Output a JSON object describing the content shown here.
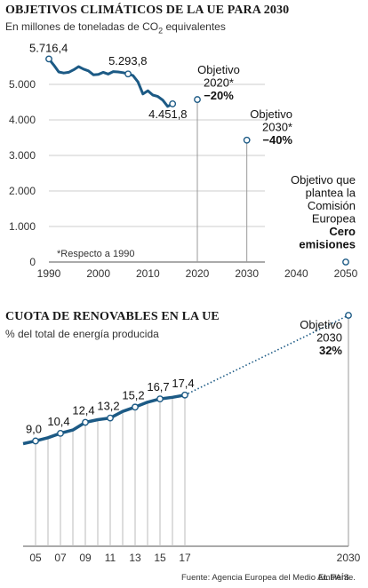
{
  "chart_data": [
    {
      "type": "line",
      "title": "OBJETIVOS CLIMÁTICOS DE LA UE PARA 2030",
      "subtitle_pre": "En millones de toneladas de CO",
      "subtitle_sub": "2",
      "subtitle_post": " equivalentes",
      "ylim": [
        0,
        6000
      ],
      "yticks": [
        "0",
        "1.000",
        "2.000",
        "3.000",
        "4.000",
        "5.000"
      ],
      "xlim": [
        1990,
        2050
      ],
      "xticks": [
        "1990",
        "2000",
        "2010",
        "2020",
        "2030",
        "2040",
        "2050"
      ],
      "grid": true,
      "note": "*Respecto a 1990",
      "series": [
        {
          "x": [
            1990,
            1991,
            1992,
            1993,
            1994,
            1995,
            1996,
            1997,
            1998,
            1999,
            2000,
            2001,
            2002,
            2003,
            2004,
            2005,
            2006,
            2007,
            2008,
            2009,
            2010,
            2011,
            2012,
            2013,
            2014,
            2015
          ],
          "y": [
            5716.4,
            5540,
            5350,
            5320,
            5340,
            5410,
            5500,
            5430,
            5380,
            5270,
            5280,
            5340,
            5290,
            5360,
            5350,
            5330,
            5293.8,
            5250,
            5070,
            4730,
            4820,
            4700,
            4660,
            4560,
            4380,
            4451.8
          ]
        }
      ],
      "annotations": [
        {
          "label": "5.716,4",
          "x": 1990,
          "y": 5716.4
        },
        {
          "label": "5.293,8",
          "x": 2006,
          "y": 5293.8
        },
        {
          "label": "4.451,8",
          "x": 2015,
          "y": 4451.8
        }
      ],
      "targets": [
        {
          "x": 2020,
          "y": 4573,
          "lines": [
            "Objetivo",
            "2020*"
          ],
          "bold": "−20%"
        },
        {
          "x": 2030,
          "y": 3430,
          "lines": [
            "Objetivo",
            "2030*"
          ],
          "bold": "−40%"
        },
        {
          "x": 2050,
          "y": 0,
          "lines": [
            "Objetivo que",
            "plantea la",
            "Comisión",
            "Europea"
          ],
          "bold_lines": [
            "Cero",
            "emisiones"
          ]
        }
      ]
    },
    {
      "type": "line",
      "title": "CUOTA DE RENOVABLES EN LA UE",
      "subtitle": "% del total de energía producida",
      "xticks": [
        "05",
        "07",
        "09",
        "11",
        "13",
        "15",
        "17",
        "2030"
      ],
      "series": [
        {
          "x": [
            2004,
            2005,
            2006,
            2007,
            2008,
            2009,
            2010,
            2011,
            2012,
            2013,
            2014,
            2015,
            2016,
            2017
          ],
          "y": [
            8.5,
            9.0,
            9.6,
            10.4,
            11.0,
            12.4,
            12.9,
            13.2,
            14.4,
            15.2,
            16.1,
            16.7,
            17.0,
            17.4
          ]
        }
      ],
      "annotations": [
        {
          "label": "9,0",
          "x": 2005,
          "y": 9.0
        },
        {
          "label": "10,4",
          "x": 2007,
          "y": 10.4
        },
        {
          "label": "12,4",
          "x": 2009,
          "y": 12.4
        },
        {
          "label": "13,2",
          "x": 2011,
          "y": 13.2
        },
        {
          "label": "15,2",
          "x": 2013,
          "y": 15.2
        },
        {
          "label": "16,7",
          "x": 2015,
          "y": 16.7
        },
        {
          "label": "17,4",
          "x": 2017,
          "y": 17.4
        }
      ],
      "target": {
        "x": 2030,
        "y": 32,
        "lines": [
          "Objetivo",
          "2030"
        ],
        "bold": "32%"
      }
    }
  ],
  "footer": {
    "source": "Fuente: Agencia Europea del Medio Ambiente.",
    "credit": "EL PAÍS"
  },
  "colors": {
    "line": "#1c5a85",
    "dot": "#1c5a85",
    "grid": "#cccccc",
    "axis": "#555555"
  }
}
